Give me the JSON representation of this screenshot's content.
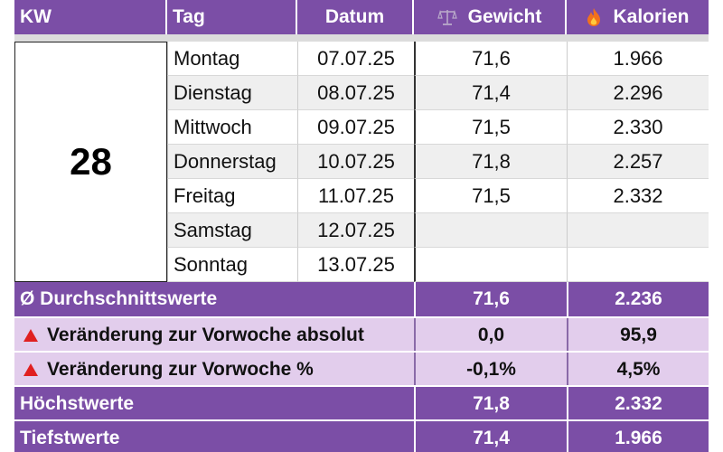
{
  "header": {
    "kw": "KW",
    "tag": "Tag",
    "datum": "Datum",
    "gewicht": "Gewicht",
    "kalorien": "Kalorien",
    "gewicht_icon": "scale-icon",
    "kalorien_icon": "flame-icon"
  },
  "week": "28",
  "days": [
    {
      "tag": "Montag",
      "datum": "07.07.25",
      "gewicht": "71,6",
      "kalorien": "1.966"
    },
    {
      "tag": "Dienstag",
      "datum": "08.07.25",
      "gewicht": "71,4",
      "kalorien": "2.296"
    },
    {
      "tag": "Mittwoch",
      "datum": "09.07.25",
      "gewicht": "71,5",
      "kalorien": "2.330"
    },
    {
      "tag": "Donnerstag",
      "datum": "10.07.25",
      "gewicht": "71,8",
      "kalorien": "2.257"
    },
    {
      "tag": "Freitag",
      "datum": "11.07.25",
      "gewicht": "71,5",
      "kalorien": "2.332"
    },
    {
      "tag": "Samstag",
      "datum": "12.07.25",
      "gewicht": "",
      "kalorien": ""
    },
    {
      "tag": "Sonntag",
      "datum": "13.07.25",
      "gewicht": "",
      "kalorien": ""
    }
  ],
  "summary": {
    "durchschnitt": {
      "label": "Ø Durchschnittswerte",
      "gewicht": "71,6",
      "kalorien": "2.236"
    },
    "abs": {
      "label": "Veränderung zur Vorwoche absolut",
      "gewicht": "0,0",
      "kalorien": "95,9",
      "icon": "triangle-up-icon"
    },
    "pct": {
      "label": "Veränderung zur Vorwoche %",
      "gewicht": "-0,1%",
      "kalorien": "4,5%",
      "icon": "triangle-up-icon"
    },
    "hoechst": {
      "label": "Höchstwerte",
      "gewicht": "71,8",
      "kalorien": "2.332"
    },
    "tiefst": {
      "label": "Tiefstwerte",
      "gewicht": "71,4",
      "kalorien": "1.966"
    }
  },
  "colors": {
    "header_purple": "#7b4ea6",
    "light_purple": "#e2cdec",
    "triangle_red": "#e02020"
  }
}
